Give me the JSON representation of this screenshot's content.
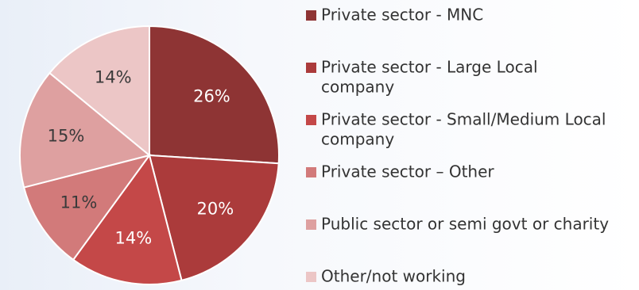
{
  "chart_data": {
    "type": "pie",
    "title": "",
    "slices": [
      {
        "label": "Private sector - MNC",
        "value": 26,
        "display": "26%",
        "color": "#8e3434"
      },
      {
        "label": "Private sector - Large Local company",
        "value": 20,
        "display": "20%",
        "color": "#ab3b3b"
      },
      {
        "label": "Private sector - Small/Medium Local company",
        "value": 14,
        "display": "14%",
        "color": "#c44848"
      },
      {
        "label": "Private sector – Other",
        "value": 11,
        "display": "11%",
        "color": "#d27a7a"
      },
      {
        "label": "Public sector or semi govt or charity",
        "value": 15,
        "display": "15%",
        "color": "#dea0a0"
      },
      {
        "label": "Other/not working",
        "value": 14,
        "display": "14%",
        "color": "#ecc6c6"
      }
    ],
    "legend": {
      "position": "right",
      "lines": [
        [
          "Private sector - MNC"
        ],
        [
          "Private sector - Large Local",
          "company"
        ],
        [
          "Private sector - Small/Medium Local",
          "company"
        ],
        [
          "Private sector – Other"
        ],
        [
          "Public sector or semi govt or charity"
        ],
        [
          "Other/not working"
        ]
      ]
    }
  }
}
